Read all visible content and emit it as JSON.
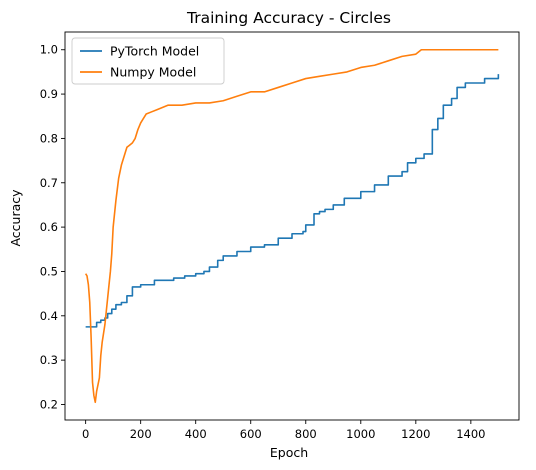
{
  "chart_data": {
    "type": "line",
    "title": "Training Accuracy - Circles",
    "xlabel": "Epoch",
    "ylabel": "Accuracy",
    "xlim": [
      -75,
      1575
    ],
    "ylim": [
      0.165,
      1.04
    ],
    "xticks": [
      0,
      200,
      400,
      600,
      800,
      1000,
      1200,
      1400
    ],
    "yticks": [
      0.2,
      0.3,
      0.4,
      0.5,
      0.6,
      0.7,
      0.8,
      0.9,
      1.0
    ],
    "ytick_labels": [
      "0.2",
      "0.3",
      "0.4",
      "0.5",
      "0.6",
      "0.7",
      "0.8",
      "0.9",
      "1.0"
    ],
    "grid": false,
    "legend": "top-left",
    "series": [
      {
        "name": "PyTorch Model",
        "color": "#1f77b4",
        "x": [
          0,
          30,
          40,
          55,
          70,
          80,
          95,
          110,
          130,
          150,
          170,
          190,
          200,
          230,
          250,
          280,
          320,
          360,
          400,
          430,
          450,
          480,
          500,
          550,
          600,
          650,
          700,
          750,
          790,
          800,
          830,
          850,
          870,
          900,
          940,
          1000,
          1050,
          1100,
          1150,
          1170,
          1200,
          1230,
          1260,
          1280,
          1300,
          1330,
          1350,
          1380,
          1400,
          1450,
          1500
        ],
        "y": [
          0.375,
          0.375,
          0.385,
          0.39,
          0.395,
          0.405,
          0.415,
          0.425,
          0.43,
          0.445,
          0.465,
          0.465,
          0.47,
          0.47,
          0.48,
          0.48,
          0.485,
          0.49,
          0.495,
          0.5,
          0.51,
          0.525,
          0.535,
          0.545,
          0.555,
          0.56,
          0.575,
          0.585,
          0.59,
          0.605,
          0.63,
          0.635,
          0.64,
          0.65,
          0.665,
          0.68,
          0.695,
          0.715,
          0.725,
          0.745,
          0.755,
          0.765,
          0.82,
          0.845,
          0.875,
          0.89,
          0.915,
          0.925,
          0.925,
          0.935,
          0.945
        ]
      },
      {
        "name": "Numpy Model",
        "color": "#ff7f0e",
        "x": [
          0,
          5,
          10,
          15,
          20,
          25,
          30,
          35,
          40,
          45,
          50,
          55,
          60,
          65,
          70,
          75,
          80,
          85,
          90,
          95,
          100,
          110,
          120,
          130,
          140,
          150,
          160,
          170,
          180,
          190,
          200,
          210,
          220,
          240,
          260,
          300,
          350,
          400,
          450,
          500,
          550,
          600,
          650,
          700,
          750,
          800,
          850,
          900,
          950,
          1000,
          1050,
          1100,
          1150,
          1200,
          1220,
          1250,
          1300,
          1400,
          1500
        ],
        "y": [
          0.495,
          0.49,
          0.47,
          0.43,
          0.35,
          0.25,
          0.22,
          0.205,
          0.23,
          0.245,
          0.26,
          0.31,
          0.34,
          0.36,
          0.38,
          0.41,
          0.44,
          0.47,
          0.5,
          0.54,
          0.6,
          0.66,
          0.71,
          0.74,
          0.76,
          0.78,
          0.785,
          0.79,
          0.8,
          0.82,
          0.835,
          0.845,
          0.855,
          0.86,
          0.865,
          0.875,
          0.875,
          0.88,
          0.88,
          0.885,
          0.895,
          0.905,
          0.905,
          0.915,
          0.925,
          0.935,
          0.94,
          0.945,
          0.95,
          0.96,
          0.965,
          0.975,
          0.985,
          0.99,
          1.0,
          1.0,
          1.0,
          1.0,
          1.0
        ]
      }
    ]
  }
}
